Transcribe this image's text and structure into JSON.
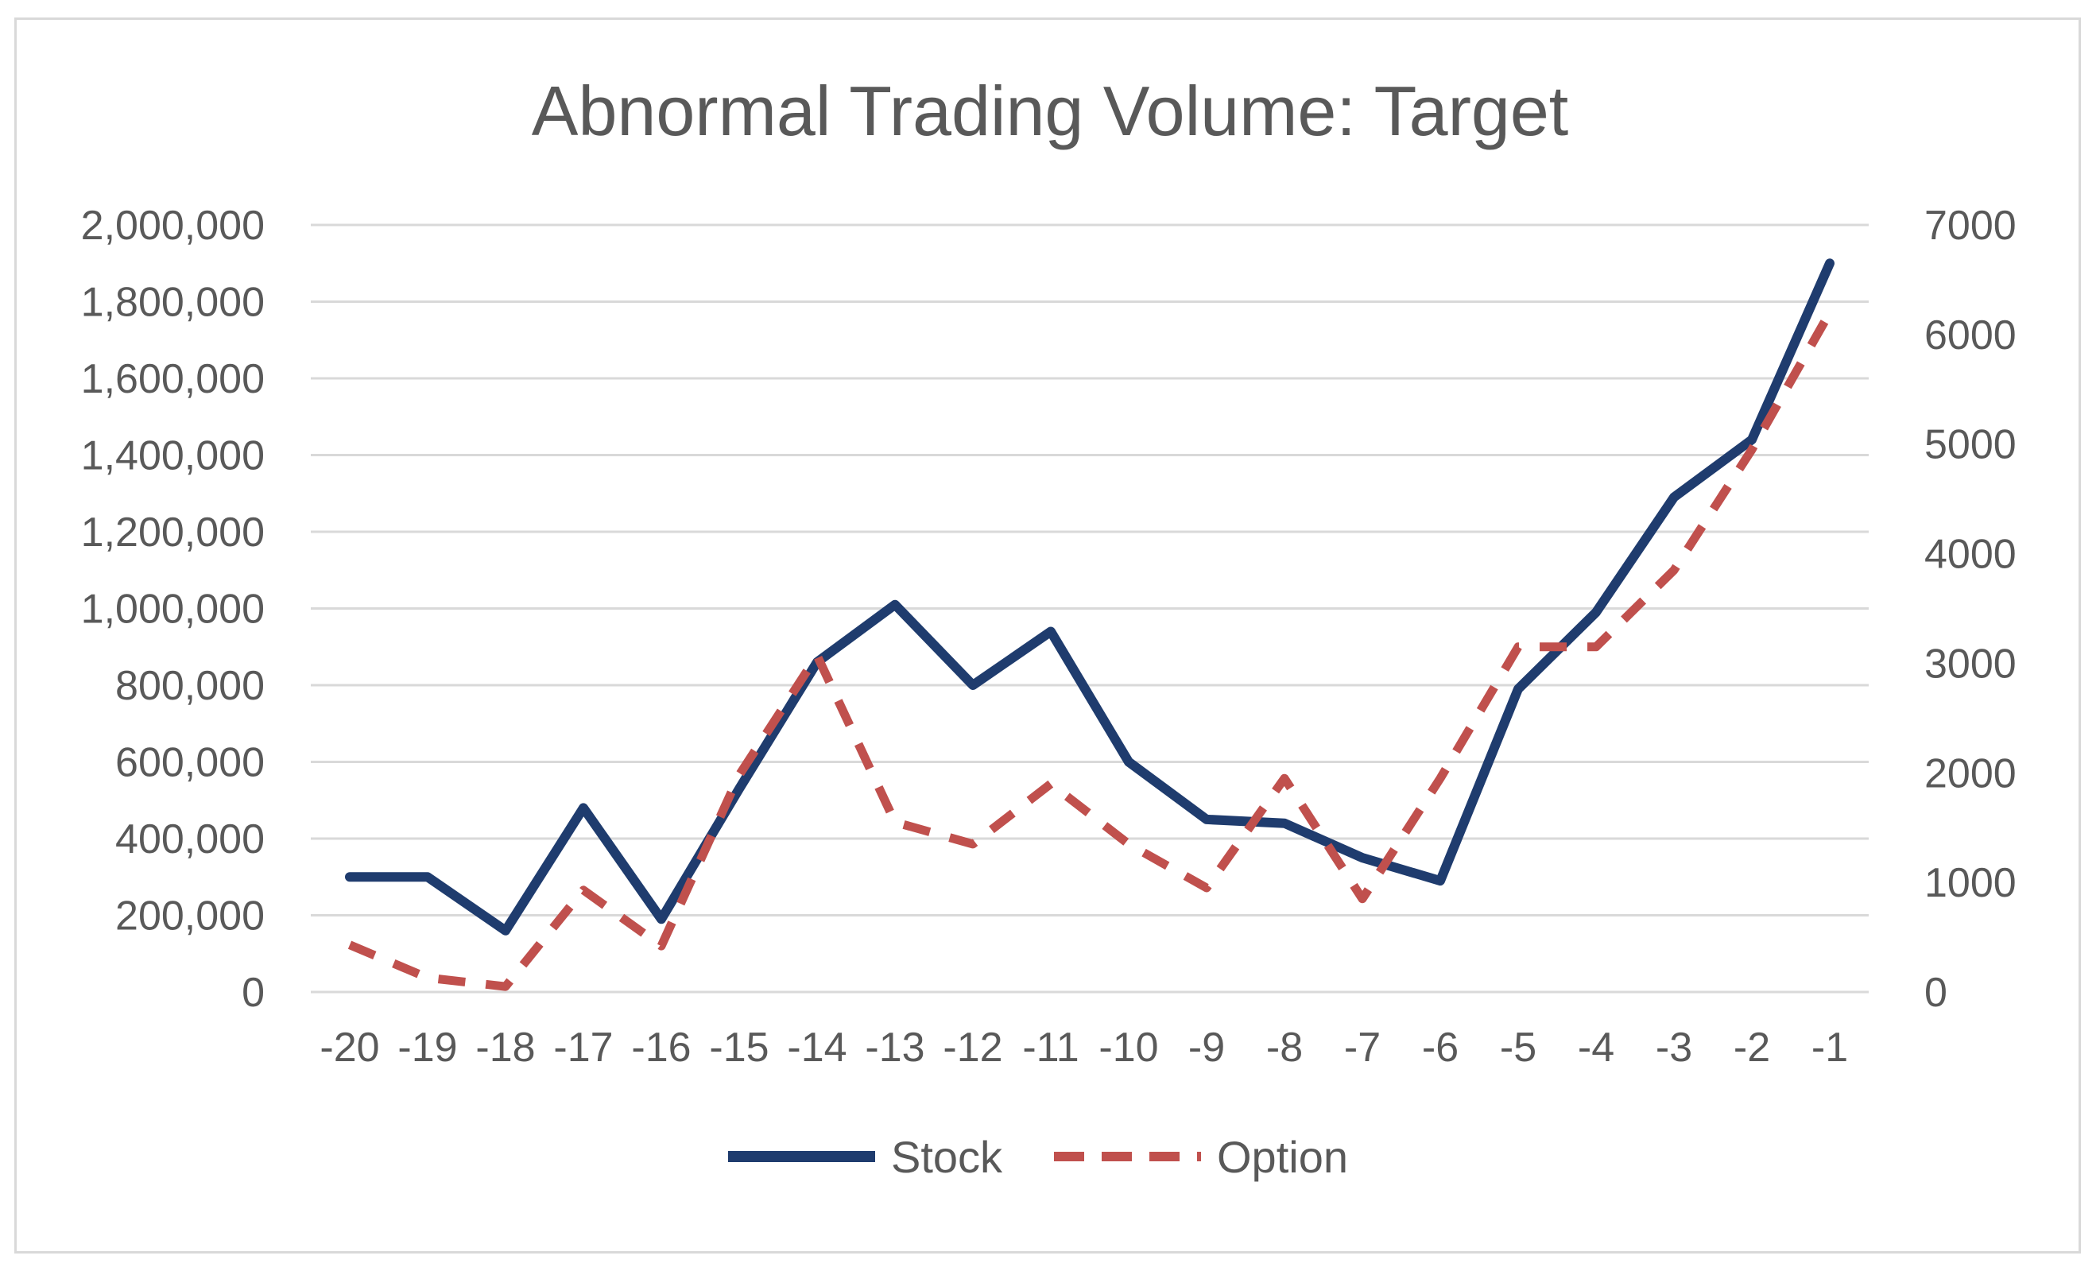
{
  "chart_data": {
    "type": "line",
    "title": "Abnormal Trading Volume: Target",
    "categories": [
      "-20",
      "-19",
      "-18",
      "-17",
      "-16",
      "-15",
      "-14",
      "-13",
      "-12",
      "-11",
      "-10",
      "-9",
      "-8",
      "-7",
      "-6",
      "-5",
      "-4",
      "-3",
      "-2",
      "-1"
    ],
    "series": [
      {
        "name": "Stock",
        "axis": "left",
        "color": "#1f3c6e",
        "style": "solid",
        "values": [
          300000,
          300000,
          160000,
          480000,
          190000,
          530000,
          860000,
          1010000,
          800000,
          940000,
          600000,
          450000,
          440000,
          350000,
          290000,
          790000,
          990000,
          1290000,
          1440000,
          1900000
        ]
      },
      {
        "name": "Option",
        "axis": "right",
        "color": "#c0504d",
        "style": "dashed",
        "values": [
          430,
          130,
          50,
          930,
          420,
          1980,
          3070,
          1550,
          1350,
          1900,
          1350,
          950,
          1950,
          850,
          1950,
          3150,
          3150,
          3850,
          4950,
          6200
        ]
      }
    ],
    "y_left": {
      "range": [
        0,
        2000000
      ],
      "ticks": [
        "0",
        "200,000",
        "400,000",
        "600,000",
        "800,000",
        "1,000,000",
        "1,200,000",
        "1,400,000",
        "1,600,000",
        "1,800,000",
        "2,000,000"
      ],
      "tick_values": [
        0,
        200000,
        400000,
        600000,
        800000,
        1000000,
        1200000,
        1400000,
        1600000,
        1800000,
        2000000
      ]
    },
    "y_right": {
      "range": [
        0,
        7000
      ],
      "ticks": [
        "0",
        "1000",
        "2000",
        "3000",
        "4000",
        "5000",
        "6000",
        "7000"
      ],
      "tick_values": [
        0,
        1000,
        2000,
        3000,
        4000,
        5000,
        6000,
        7000
      ]
    },
    "grid": true,
    "legend": {
      "position": "bottom",
      "entries": [
        "Stock",
        "Option"
      ]
    },
    "gridline_color": "#d9d9d9"
  }
}
